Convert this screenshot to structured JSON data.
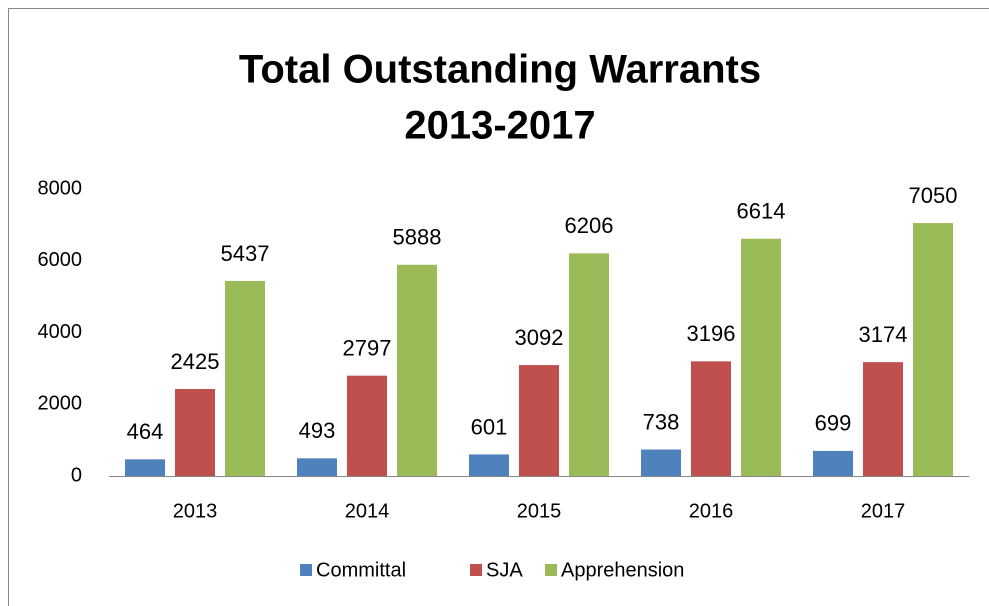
{
  "chart_data": {
    "type": "bar",
    "title": [
      "Total Outstanding Warrants",
      "2013-2017"
    ],
    "categories": [
      "2013",
      "2014",
      "2015",
      "2016",
      "2017"
    ],
    "series": [
      {
        "name": "Committal",
        "color": "#4f81bd",
        "values": [
          464,
          493,
          601,
          738,
          699
        ]
      },
      {
        "name": "SJA",
        "color": "#c0504d",
        "values": [
          2425,
          2797,
          3092,
          3196,
          3174
        ]
      },
      {
        "name": "Apprehension",
        "color": "#9bbb59",
        "values": [
          5437,
          5888,
          6206,
          6614,
          7050
        ]
      }
    ],
    "ylim": [
      0,
      8000
    ],
    "yticks": [
      0,
      2000,
      4000,
      6000,
      8000
    ],
    "grid": false,
    "legend": "bottom"
  }
}
